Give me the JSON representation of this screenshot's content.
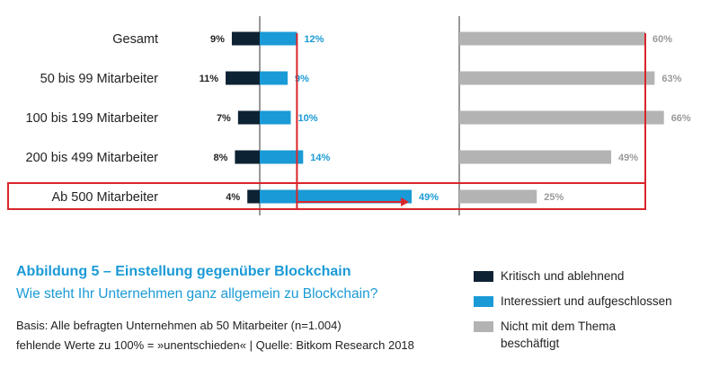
{
  "chart_data": {
    "type": "bar",
    "title": "Abbildung 5 – Einstellung gegenüber Blockchain",
    "subtitle": "Wie steht Ihr Unternehmen ganz allgemein zu Blockchain?",
    "categories": [
      "Gesamt",
      "50 bis 99 Mitarbeiter",
      "100 bis 199 Mitarbeiter",
      "200 bis 499 Mitarbeiter",
      "Ab 500 Mitarbeiter"
    ],
    "series": [
      {
        "name": "Kritisch und ablehnend",
        "values": [
          9,
          11,
          7,
          8,
          4
        ],
        "labels": [
          "9%",
          "11%",
          "7%",
          "8%",
          "4%"
        ]
      },
      {
        "name": "Interessiert und aufgeschlossen",
        "values": [
          12,
          9,
          10,
          14,
          49
        ],
        "labels": [
          "12%",
          "9%",
          "10%",
          "14%",
          "49%"
        ]
      },
      {
        "name": "Nicht mit dem Thema beschäftigt",
        "values": [
          60,
          63,
          66,
          49,
          25
        ],
        "labels": [
          "60%",
          "63%",
          "66%",
          "49%",
          "25%"
        ]
      }
    ],
    "highlight_category": "Ab 500 Mitarbeiter",
    "unit": "%"
  },
  "colors": {
    "kritisch": "#0d2233",
    "interessiert": "#1a9ad6",
    "nicht": "#b3b3b3",
    "highlight": "#d9262b",
    "axis": "#333333",
    "text": "#222222",
    "title": "#1a9ad6"
  },
  "figure": {
    "title": "Abbildung 5 – Einstellung gegenüber Blockchain",
    "subtitle": "Wie steht Ihr Unternehmen ganz allgemein zu Blockchain?",
    "note_1": "Basis: Alle befragten Unternehmen ab 50 Mitarbeiter (n=1.004)",
    "note_2": "fehlende Werte zu 100% = »unentschieden« | Quelle: Bitkom Research 2018"
  },
  "legend": {
    "items": [
      {
        "label": "Kritisch und ablehnend",
        "color": "#0d2233"
      },
      {
        "label": "Interessiert und aufgeschlossen",
        "color": "#1a9ad6"
      },
      {
        "label": "Nicht mit dem Thema beschäftigt",
        "color": "#b3b3b3"
      }
    ]
  }
}
